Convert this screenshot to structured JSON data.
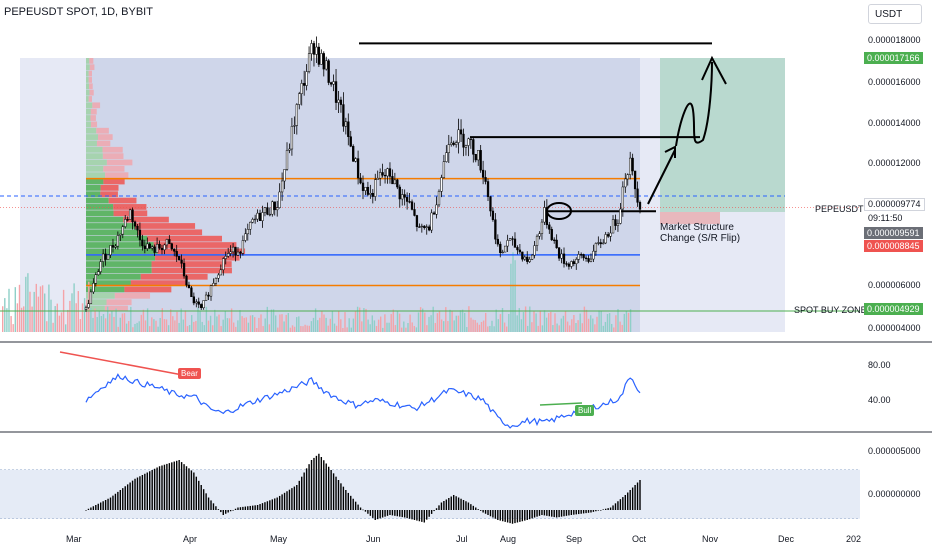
{
  "header": {
    "symbol_title": "PEPEUSDT SPOT, 1D, BYBIT",
    "currency_button": "USDT"
  },
  "price_axis": {
    "ticks": [
      "0.000018000",
      "0.000016000",
      "0.000014000",
      "0.000012000",
      "0.000006000",
      "0.000004000"
    ],
    "tags": {
      "high_label": "0.000017166",
      "symbol_label": "PEPEUSDT",
      "current_price": "0.000009774",
      "countdown": "09:11:50",
      "tag_grey": "0.000009591",
      "tag_red": "0.000008845",
      "buy_zone_label": "SPOT BUY ZONE",
      "buy_zone_price": "0.000004929"
    }
  },
  "annotations": {
    "structure_line1": "Market Structure",
    "structure_line2": "Change (S/R Flip)"
  },
  "rsi": {
    "ticks": [
      "80.00",
      "40.00"
    ],
    "bear_label": "Bear",
    "bull_label": "Bull"
  },
  "macd": {
    "ticks": [
      "0.000005000",
      "0.000000000"
    ]
  },
  "time_axis": {
    "months": [
      "Mar",
      "Apr",
      "May",
      "Jun",
      "Jul",
      "Aug",
      "Sep",
      "Oct",
      "Nov",
      "Dec",
      "202"
    ]
  },
  "colors": {
    "up": "#26a69a",
    "down": "#ef5350",
    "support": "#f57c00",
    "blue_level": "#2962ff",
    "rsi_line": "#2962ff",
    "buy_zone": "#4caf50"
  },
  "chart_data": {
    "type": "candlestick",
    "price_ylim": [
      3.6e-06,
      1.85e-05
    ],
    "levels": {
      "resistance_top": 1.72e-05,
      "resistance_mid": 1.29e-05,
      "orange_upper": 1.1e-05,
      "blue_dashed": 1.02e-05,
      "flip_level": 9.5e-06,
      "blue_support": 7.5e-06,
      "orange_lower": 6.1e-06,
      "spot_buy_zone": 4.929e-06
    },
    "close_path": [
      [
        0,
        5e-06
      ],
      [
        6,
        7.2e-06
      ],
      [
        12,
        8.1e-06
      ],
      [
        18,
        9.5e-06
      ],
      [
        22,
        8.2e-06
      ],
      [
        27,
        7.7e-06
      ],
      [
        33,
        8e-06
      ],
      [
        38,
        7.3e-06
      ],
      [
        43,
        5.5e-06
      ],
      [
        47,
        5e-06
      ],
      [
        52,
        6.3e-06
      ],
      [
        57,
        7.5e-06
      ],
      [
        63,
        7.8e-06
      ],
      [
        68,
        9e-06
      ],
      [
        73,
        9.5e-06
      ],
      [
        78,
        9.8e-06
      ],
      [
        82,
        1.2e-05
      ],
      [
        86,
        1.42e-05
      ],
      [
        90,
        1.6e-05
      ],
      [
        93,
        1.72e-05
      ],
      [
        96,
        1.64e-05
      ],
      [
        100,
        1.55e-05
      ],
      [
        104,
        1.4e-05
      ],
      [
        108,
        1.25e-05
      ],
      [
        112,
        1.08e-05
      ],
      [
        116,
        1.02e-05
      ],
      [
        120,
        1.11e-05
      ],
      [
        124,
        1.12e-05
      ],
      [
        128,
        1.03e-05
      ],
      [
        132,
        9.8e-06
      ],
      [
        136,
        8.6e-06
      ],
      [
        140,
        8.8e-06
      ],
      [
        144,
        1.05e-05
      ],
      [
        148,
        1.29e-05
      ],
      [
        152,
        1.29e-05
      ],
      [
        156,
        1.27e-05
      ],
      [
        160,
        1.2e-05
      ],
      [
        163,
        1.09e-05
      ],
      [
        166,
        9e-06
      ],
      [
        169,
        7.4e-06
      ],
      [
        172,
        8.2e-06
      ],
      [
        175,
        7.9e-06
      ],
      [
        178,
        7.5e-06
      ],
      [
        181,
        7.2e-06
      ],
      [
        184,
        8.3e-06
      ],
      [
        187,
        9.4e-06
      ],
      [
        190,
        8.4e-06
      ],
      [
        193,
        7.5e-06
      ],
      [
        196,
        7.1e-06
      ],
      [
        199,
        7.2e-06
      ],
      [
        202,
        7.4e-06
      ],
      [
        205,
        7.3e-06
      ],
      [
        208,
        7.8e-06
      ],
      [
        211,
        8.2e-06
      ],
      [
        214,
        8.7e-06
      ],
      [
        217,
        9.2e-06
      ],
      [
        220,
        1.12e-05
      ],
      [
        222,
        1.17e-05
      ],
      [
        224,
        1.06e-05
      ],
      [
        226,
        9.8e-06
      ]
    ],
    "rsi_range": [
      20,
      100
    ],
    "rsi_path": [
      [
        0,
        55
      ],
      [
        8,
        68
      ],
      [
        14,
        75
      ],
      [
        20,
        70
      ],
      [
        28,
        66
      ],
      [
        36,
        60
      ],
      [
        45,
        57
      ],
      [
        50,
        48
      ],
      [
        56,
        44
      ],
      [
        63,
        50
      ],
      [
        70,
        55
      ],
      [
        78,
        60
      ],
      [
        86,
        66
      ],
      [
        92,
        71
      ],
      [
        97,
        63
      ],
      [
        103,
        56
      ],
      [
        110,
        51
      ],
      [
        118,
        55
      ],
      [
        126,
        52
      ],
      [
        134,
        48
      ],
      [
        142,
        56
      ],
      [
        148,
        63
      ],
      [
        155,
        60
      ],
      [
        162,
        55
      ],
      [
        168,
        40
      ],
      [
        173,
        34
      ],
      [
        180,
        38
      ],
      [
        188,
        37
      ],
      [
        196,
        43
      ],
      [
        204,
        48
      ],
      [
        212,
        52
      ],
      [
        218,
        57
      ],
      [
        222,
        75
      ],
      [
        226,
        62
      ]
    ],
    "macd_path": [
      [
        0,
        0
      ],
      [
        10,
        1e-06
      ],
      [
        20,
        2.5e-06
      ],
      [
        30,
        3.5e-06
      ],
      [
        38,
        4e-06
      ],
      [
        44,
        3e-06
      ],
      [
        50,
        1e-06
      ],
      [
        56,
        -4e-07
      ],
      [
        62,
        2e-07
      ],
      [
        70,
        4e-07
      ],
      [
        78,
        1e-06
      ],
      [
        86,
        2e-06
      ],
      [
        92,
        4e-06
      ],
      [
        95,
        4.5e-06
      ],
      [
        100,
        3.2e-06
      ],
      [
        106,
        1.6e-06
      ],
      [
        112,
        2e-07
      ],
      [
        118,
        -8e-07
      ],
      [
        124,
        -4e-07
      ],
      [
        130,
        -6e-07
      ],
      [
        138,
        -1e-06
      ],
      [
        145,
        6e-07
      ],
      [
        150,
        1.2e-06
      ],
      [
        156,
        6e-07
      ],
      [
        162,
        -2e-07
      ],
      [
        168,
        -8e-07
      ],
      [
        174,
        -1.1e-06
      ],
      [
        180,
        -8e-07
      ],
      [
        186,
        -4e-07
      ],
      [
        192,
        -6e-07
      ],
      [
        198,
        -4e-07
      ],
      [
        206,
        -2e-07
      ],
      [
        214,
        2e-07
      ],
      [
        220,
        1.2e-06
      ],
      [
        226,
        2.4e-06
      ]
    ],
    "macd_range": [
      -1.6e-06,
      5.6e-06
    ]
  }
}
